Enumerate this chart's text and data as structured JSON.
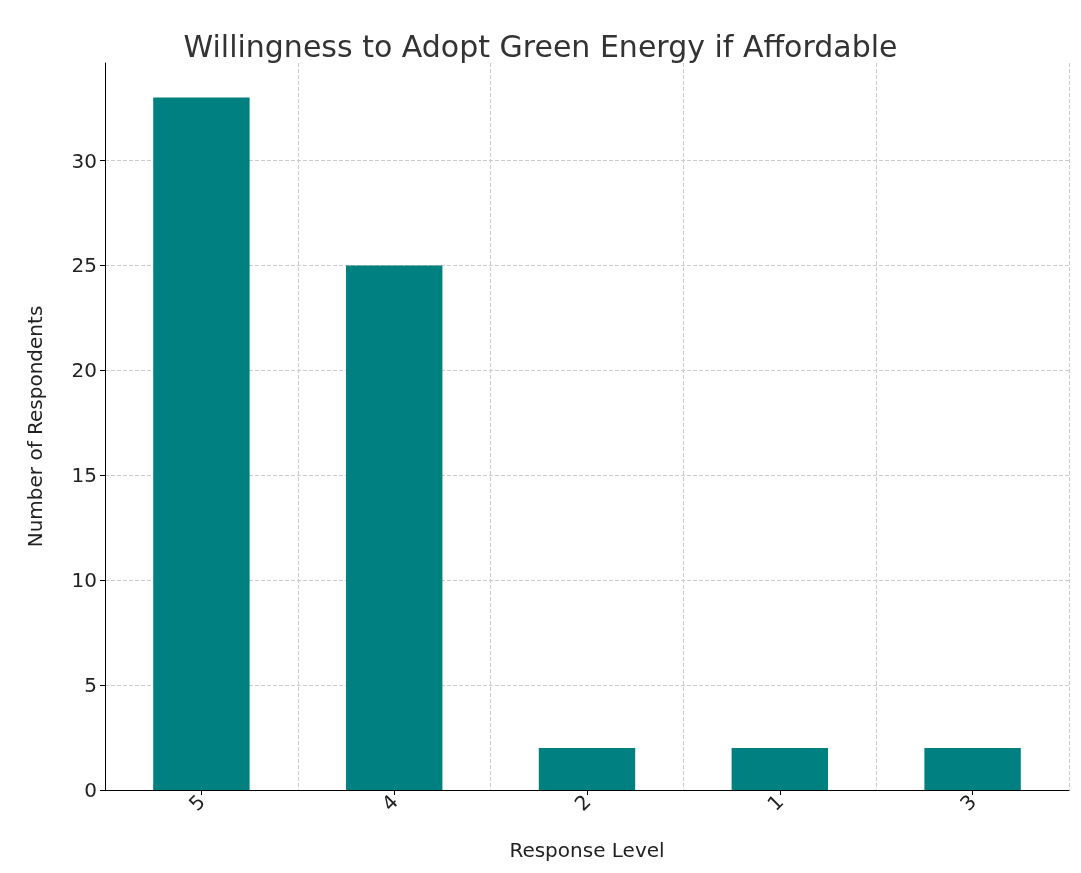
{
  "chart_data": {
    "type": "bar",
    "title": "Willingness to Adopt Green Energy if Affordable",
    "xlabel": "Response Level",
    "ylabel": "Number of Respondents",
    "categories": [
      "5",
      "4",
      "2",
      "1",
      "3"
    ],
    "values": [
      33,
      25,
      2,
      2,
      2
    ],
    "color": "#008080",
    "ylim": [
      0,
      34.65
    ],
    "yticks": [
      0,
      5,
      10,
      15,
      20,
      25,
      30
    ],
    "grid": true
  }
}
